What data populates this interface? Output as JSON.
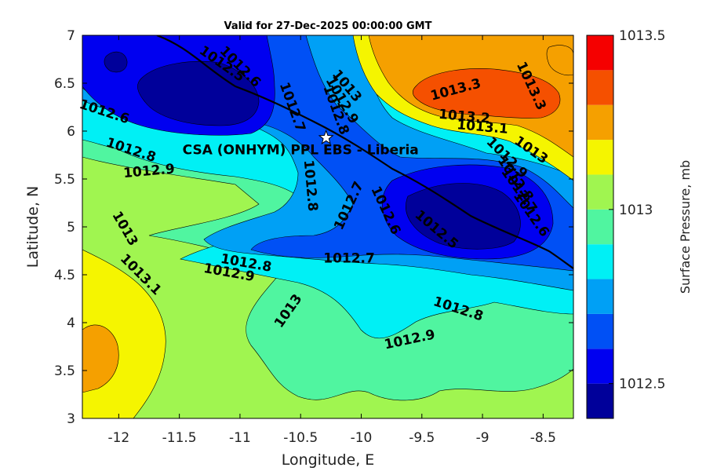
{
  "chart_data": {
    "type": "heatmap",
    "title": "Valid for 27-Dec-2025 00:00:00 GMT",
    "xlabel": "Longitude, E",
    "ylabel": "Latitude, N",
    "xlim": [
      -12.3,
      -8.25
    ],
    "ylim": [
      3,
      7
    ],
    "x_ticks": [
      "-12",
      "-11.5",
      "-11",
      "-10.5",
      "-10",
      "-9.5",
      "-9",
      "-8.5"
    ],
    "x_tick_values": [
      -12,
      -11.5,
      -11,
      -10.5,
      -10,
      -9.5,
      -9,
      -8.5
    ],
    "y_ticks": [
      "3",
      "3.5",
      "4",
      "4.5",
      "5",
      "5.5",
      "6",
      "6.5",
      "7"
    ],
    "y_tick_values": [
      3,
      3.5,
      4,
      4.5,
      5,
      5.5,
      6,
      6.5,
      7
    ],
    "colorbar": {
      "label": "Surface Pressure, mb",
      "range": [
        1012.4,
        1013.5
      ],
      "levels": [
        1012.4,
        1012.5,
        1012.6,
        1012.7,
        1012.8,
        1012.9,
        1013.0,
        1013.1,
        1013.2,
        1013.3,
        1013.4,
        1013.5
      ],
      "colors": [
        "#00009a",
        "#0000f0",
        "#0050f5",
        "#00a0f5",
        "#00f0f5",
        "#50f5a0",
        "#a0f550",
        "#f5f500",
        "#f5a000",
        "#f55000",
        "#f50000",
        "#9a0000"
      ],
      "tick_labels": [
        "1012.5",
        "1013",
        "1013.5"
      ],
      "tick_values": [
        1012.5,
        1013.0,
        1013.5
      ]
    },
    "contour_labels": [
      {
        "text": "1013.3",
        "lon": -9.22,
        "lat": 6.43,
        "rot": -15
      },
      {
        "text": "1013.3",
        "lon": -8.6,
        "lat": 6.47,
        "rot": 65
      },
      {
        "text": "1013.2",
        "lon": -9.15,
        "lat": 6.15,
        "rot": 5
      },
      {
        "text": "1013.1",
        "lon": -9.0,
        "lat": 6.04,
        "rot": 5
      },
      {
        "text": "1013",
        "lon": -8.6,
        "lat": 5.8,
        "rot": 35
      },
      {
        "text": "1012.9",
        "lon": -8.8,
        "lat": 5.72,
        "rot": 45
      },
      {
        "text": "1012.8",
        "lon": -8.73,
        "lat": 5.5,
        "rot": 55
      },
      {
        "text": "1012.7",
        "lon": -8.7,
        "lat": 5.38,
        "rot": 55
      },
      {
        "text": "1012.6",
        "lon": -8.6,
        "lat": 5.13,
        "rot": 55
      },
      {
        "text": "1012.5",
        "lon": -9.38,
        "lat": 4.97,
        "rot": 40
      },
      {
        "text": "1012.6",
        "lon": -9.8,
        "lat": 5.17,
        "rot": 65
      },
      {
        "text": "1012.7",
        "lon": -10.1,
        "lat": 5.22,
        "rot": -65
      },
      {
        "text": "1012.8",
        "lon": -10.42,
        "lat": 5.43,
        "rot": 85
      },
      {
        "text": "1012.8",
        "lon": -10.21,
        "lat": 6.22,
        "rot": 70
      },
      {
        "text": "1012.9",
        "lon": -10.16,
        "lat": 6.32,
        "rot": 60
      },
      {
        "text": "1013",
        "lon": -10.12,
        "lat": 6.47,
        "rot": 50
      },
      {
        "text": "1012.7",
        "lon": -10.57,
        "lat": 6.25,
        "rot": 70
      },
      {
        "text": "1012.6",
        "lon": -11.0,
        "lat": 6.67,
        "rot": 45
      },
      {
        "text": "1012.5",
        "lon": -11.15,
        "lat": 6.7,
        "rot": 35
      },
      {
        "text": "1012.6",
        "lon": -12.12,
        "lat": 6.2,
        "rot": 18
      },
      {
        "text": "1012.8",
        "lon": -11.9,
        "lat": 5.8,
        "rot": 18
      },
      {
        "text": "1012.9",
        "lon": -11.75,
        "lat": 5.58,
        "rot": -5
      },
      {
        "text": "1013",
        "lon": -11.95,
        "lat": 4.98,
        "rot": 60
      },
      {
        "text": "1013.1",
        "lon": -11.82,
        "lat": 4.5,
        "rot": 45
      },
      {
        "text": "1012.8",
        "lon": -10.95,
        "lat": 4.62,
        "rot": 10
      },
      {
        "text": "1012.9",
        "lon": -11.09,
        "lat": 4.52,
        "rot": 10
      },
      {
        "text": "1012.7",
        "lon": -10.1,
        "lat": 4.67,
        "rot": 0
      },
      {
        "text": "1013",
        "lon": -10.6,
        "lat": 4.12,
        "rot": -55
      },
      {
        "text": "1012.8",
        "lon": -9.2,
        "lat": 4.14,
        "rot": 18
      },
      {
        "text": "1012.9",
        "lon": -9.6,
        "lat": 3.82,
        "rot": -12
      }
    ],
    "site": {
      "name": "CSA (ONHYM) PPL EBS  - Liberia",
      "lon": -10.29,
      "lat": 5.93
    },
    "grid": false,
    "legend": "colorbar-right"
  }
}
